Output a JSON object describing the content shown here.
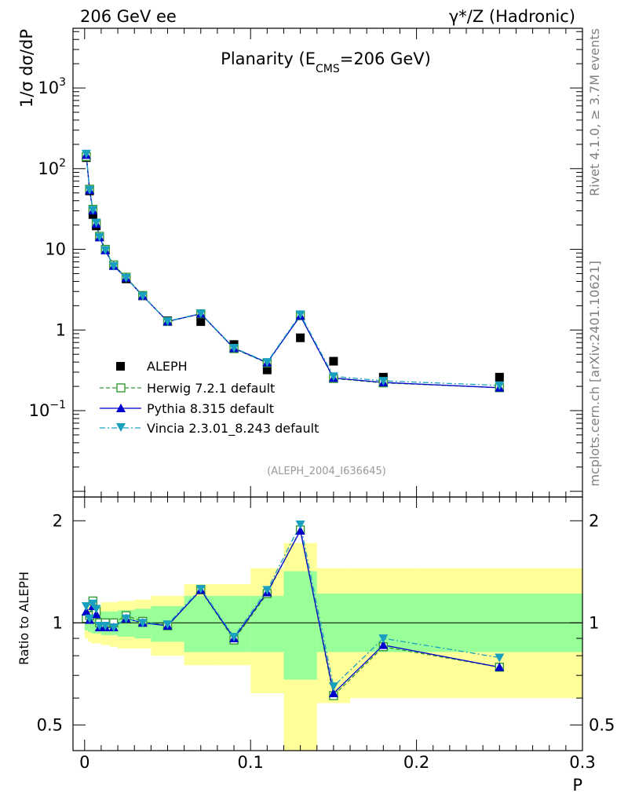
{
  "header": {
    "left": "206 GeV ee",
    "right": "γ*/Z (Hadronic)"
  },
  "side": {
    "top": "Rivet 4.1.0, ≥ 3.7M events",
    "bottom": "mcplots.cern.ch [arXiv:2401.10621]"
  },
  "analysis_id": "(ALEPH_2004_I636645)",
  "chart_data": {
    "type": "scatter",
    "title": "Planarity (E_CMS=206 GeV)",
    "title_parts": {
      "a": "Planarity (E",
      "sub": "CMS",
      "b": "=206 GeV)"
    },
    "xlabel": "P",
    "ylabel_main": "1/σ  dσ/dP",
    "ylabel_ratio": "Ratio to ALEPH",
    "xlim": [
      -0.007,
      0.3
    ],
    "ylim_main": [
      0.0085,
      5500
    ],
    "ylim_ratio": [
      0.42,
      2.35
    ],
    "yscale_main": "log",
    "yscale_ratio": "log",
    "x_ticks": [
      0,
      0.1,
      0.2,
      0.3
    ],
    "x_tick_labels": [
      "0",
      "0.1",
      "0.2",
      "0.3"
    ],
    "main_ticks": [
      0.1,
      1,
      10,
      100,
      1000
    ],
    "main_tick_labels": [
      {
        "base": "10",
        "exp": "−1"
      },
      {
        "base": "1",
        "exp": ""
      },
      {
        "base": "10",
        "exp": ""
      },
      {
        "base": "10",
        "exp": "2"
      },
      {
        "base": "10",
        "exp": "3"
      }
    ],
    "ratio_ticks": [
      0.5,
      1,
      2
    ],
    "ratio_tick_labels": [
      "0.5",
      "1",
      "2"
    ],
    "legend_placement": "lower-left",
    "bins": [
      [
        0,
        0.002
      ],
      [
        0.002,
        0.004
      ],
      [
        0.004,
        0.006
      ],
      [
        0.006,
        0.008
      ],
      [
        0.008,
        0.01
      ],
      [
        0.01,
        0.015
      ],
      [
        0.015,
        0.02
      ],
      [
        0.02,
        0.03
      ],
      [
        0.03,
        0.04
      ],
      [
        0.04,
        0.06
      ],
      [
        0.06,
        0.08
      ],
      [
        0.08,
        0.1
      ],
      [
        0.1,
        0.12
      ],
      [
        0.12,
        0.14
      ],
      [
        0.14,
        0.16
      ],
      [
        0.16,
        0.2
      ],
      [
        0.2,
        0.3
      ]
    ],
    "x": [
      0.001,
      0.003,
      0.005,
      0.007,
      0.009,
      0.0125,
      0.0175,
      0.025,
      0.035,
      0.05,
      0.07,
      0.09,
      0.11,
      0.13,
      0.15,
      0.18,
      0.25
    ],
    "data": {
      "name": "ALEPH",
      "color": "#000000",
      "values": [
        137,
        53,
        27,
        19.5,
        14.5,
        10,
        6.4,
        4.3,
        2.65,
        1.3,
        1.27,
        0.66,
        0.32,
        0.8,
        0.41,
        0.26,
        0.26
      ],
      "band_stat": [
        [
          0.95,
          1.06
        ],
        [
          0.94,
          1.07
        ],
        [
          0.93,
          1.08
        ],
        [
          0.93,
          1.08
        ],
        [
          0.93,
          1.08
        ],
        [
          0.92,
          1.08
        ],
        [
          0.92,
          1.08
        ],
        [
          0.91,
          1.09
        ],
        [
          0.9,
          1.1
        ],
        [
          0.88,
          1.12
        ],
        [
          0.82,
          1.2
        ],
        [
          0.82,
          1.2
        ],
        [
          0.82,
          1.2
        ],
        [
          0.68,
          1.42
        ],
        [
          0.82,
          1.22
        ],
        [
          0.82,
          1.22
        ],
        [
          0.82,
          1.22
        ]
      ],
      "band_tot": [
        [
          0.9,
          1.1
        ],
        [
          0.88,
          1.12
        ],
        [
          0.87,
          1.13
        ],
        [
          0.87,
          1.13
        ],
        [
          0.87,
          1.13
        ],
        [
          0.86,
          1.15
        ],
        [
          0.85,
          1.15
        ],
        [
          0.84,
          1.16
        ],
        [
          0.84,
          1.17
        ],
        [
          0.8,
          1.2
        ],
        [
          0.75,
          1.3
        ],
        [
          0.75,
          1.3
        ],
        [
          0.62,
          1.45
        ],
        [
          0.42,
          1.72
        ],
        [
          0.58,
          1.45
        ],
        [
          0.6,
          1.45
        ],
        [
          0.6,
          1.45
        ]
      ]
    },
    "series": [
      {
        "name": "Herwig 7.2.1 default",
        "color": "#339933",
        "style": "dashed",
        "marker": "open-square",
        "ratio": [
          1.03,
          1.05,
          1.16,
          1.08,
          1.0,
          1.0,
          1.0,
          1.05,
          1.01,
          0.98,
          1.25,
          0.89,
          1.22,
          1.88,
          0.61,
          0.85,
          0.74
        ]
      },
      {
        "name": "Pythia 8.315 default",
        "color": "#0000cc",
        "style": "solid",
        "marker": "filled-triangle-up",
        "ratio": [
          1.08,
          1.02,
          1.12,
          1.06,
          0.97,
          0.97,
          0.97,
          1.03,
          1.0,
          0.98,
          1.25,
          0.9,
          1.23,
          1.87,
          0.62,
          0.86,
          0.74
        ]
      },
      {
        "name": "Vincia 2.3.01_8.243 default",
        "color": "#1aa0bf",
        "style": "dashdot",
        "marker": "filled-triangle-down",
        "ratio": [
          1.12,
          1.03,
          1.14,
          1.1,
          0.98,
          0.98,
          0.97,
          1.03,
          1.0,
          0.99,
          1.26,
          0.91,
          1.25,
          1.95,
          0.65,
          0.9,
          0.79
        ]
      }
    ]
  }
}
